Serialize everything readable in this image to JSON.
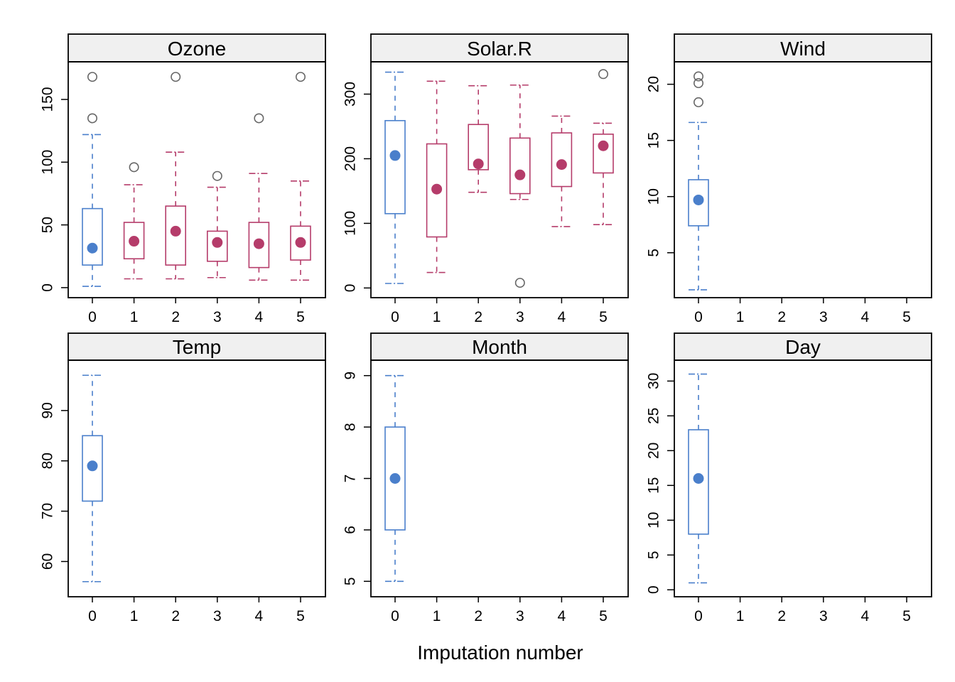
{
  "figure": {
    "xlabel": "Imputation number",
    "colors": {
      "observed": "#4A7FCB",
      "imputed": "#B53C6A",
      "outlier": "#666666",
      "strip_bg": "#F0F0F0",
      "frame": "#000000"
    }
  },
  "chart_data": [
    {
      "type": "box",
      "title": "Ozone",
      "categories": [
        "0",
        "1",
        "2",
        "3",
        "4",
        "5"
      ],
      "ylim": [
        -8,
        180
      ],
      "yticks": [
        "0",
        "50",
        "100",
        "150"
      ],
      "boxes": [
        {
          "category": "0",
          "group": "observed",
          "whisker_low": 1,
          "q1": 18,
          "median": 31.5,
          "q3": 63,
          "whisker_high": 122,
          "outliers": [
            135,
            168
          ]
        },
        {
          "category": "1",
          "group": "imputed",
          "whisker_low": 7,
          "q1": 23,
          "median": 37,
          "q3": 52,
          "whisker_high": 82,
          "outliers": [
            96
          ]
        },
        {
          "category": "2",
          "group": "imputed",
          "whisker_low": 7,
          "q1": 18,
          "median": 45,
          "q3": 65,
          "whisker_high": 108,
          "outliers": [
            168
          ]
        },
        {
          "category": "3",
          "group": "imputed",
          "whisker_low": 8,
          "q1": 21,
          "median": 36,
          "q3": 45,
          "whisker_high": 80,
          "outliers": [
            89
          ]
        },
        {
          "category": "4",
          "group": "imputed",
          "whisker_low": 6,
          "q1": 16,
          "median": 35,
          "q3": 52,
          "whisker_high": 91,
          "outliers": [
            135
          ]
        },
        {
          "category": "5",
          "group": "imputed",
          "whisker_low": 6,
          "q1": 22,
          "median": 36,
          "q3": 49,
          "whisker_high": 85,
          "outliers": [
            168
          ]
        }
      ]
    },
    {
      "type": "box",
      "title": "Solar.R",
      "categories": [
        "0",
        "1",
        "2",
        "3",
        "4",
        "5"
      ],
      "ylim": [
        -15,
        350
      ],
      "yticks": [
        "0",
        "100",
        "200",
        "300"
      ],
      "boxes": [
        {
          "category": "0",
          "group": "observed",
          "whisker_low": 7,
          "q1": 115,
          "median": 205,
          "q3": 259,
          "whisker_high": 334,
          "outliers": []
        },
        {
          "category": "1",
          "group": "imputed",
          "whisker_low": 24,
          "q1": 79,
          "median": 153,
          "q3": 223,
          "whisker_high": 320,
          "outliers": []
        },
        {
          "category": "2",
          "group": "imputed",
          "whisker_low": 148,
          "q1": 183,
          "median": 192,
          "q3": 253,
          "whisker_high": 313,
          "outliers": []
        },
        {
          "category": "3",
          "group": "imputed",
          "whisker_low": 137,
          "q1": 146,
          "median": 175,
          "q3": 232,
          "whisker_high": 314,
          "outliers": [
            8
          ]
        },
        {
          "category": "4",
          "group": "imputed",
          "whisker_low": 95,
          "q1": 157,
          "median": 191,
          "q3": 240,
          "whisker_high": 266,
          "outliers": []
        },
        {
          "category": "5",
          "group": "imputed",
          "whisker_low": 98,
          "q1": 178,
          "median": 220,
          "q3": 238,
          "whisker_high": 255,
          "outliers": [
            331
          ]
        }
      ]
    },
    {
      "type": "box",
      "title": "Wind",
      "categories": [
        "0",
        "1",
        "2",
        "3",
        "4",
        "5"
      ],
      "ylim": [
        1,
        22
      ],
      "yticks": [
        "5",
        "10",
        "15",
        "20"
      ],
      "boxes": [
        {
          "category": "0",
          "group": "observed",
          "whisker_low": 1.7,
          "q1": 7.4,
          "median": 9.7,
          "q3": 11.5,
          "whisker_high": 16.6,
          "outliers": [
            18.4,
            20.1,
            20.7
          ]
        }
      ]
    },
    {
      "type": "box",
      "title": "Temp",
      "categories": [
        "0",
        "1",
        "2",
        "3",
        "4",
        "5"
      ],
      "ylim": [
        53,
        100
      ],
      "yticks": [
        "60",
        "70",
        "80",
        "90"
      ],
      "boxes": [
        {
          "category": "0",
          "group": "observed",
          "whisker_low": 56,
          "q1": 72,
          "median": 79,
          "q3": 85,
          "whisker_high": 97,
          "outliers": []
        }
      ]
    },
    {
      "type": "box",
      "title": "Month",
      "categories": [
        "0",
        "1",
        "2",
        "3",
        "4",
        "5"
      ],
      "ylim": [
        4.7,
        9.3
      ],
      "yticks": [
        "5",
        "6",
        "7",
        "8",
        "9"
      ],
      "boxes": [
        {
          "category": "0",
          "group": "observed",
          "whisker_low": 5,
          "q1": 6,
          "median": 7,
          "q3": 8,
          "whisker_high": 9,
          "outliers": []
        }
      ]
    },
    {
      "type": "box",
      "title": "Day",
      "categories": [
        "0",
        "1",
        "2",
        "3",
        "4",
        "5"
      ],
      "ylim": [
        -1,
        33
      ],
      "yticks": [
        "0",
        "5",
        "10",
        "15",
        "20",
        "25",
        "30"
      ],
      "boxes": [
        {
          "category": "0",
          "group": "observed",
          "whisker_low": 1,
          "q1": 8,
          "median": 16,
          "q3": 23,
          "whisker_high": 31,
          "outliers": []
        }
      ]
    }
  ]
}
